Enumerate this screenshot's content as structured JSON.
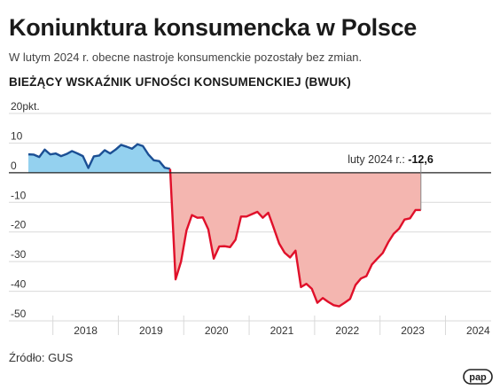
{
  "title": "Koniunktura konsumencka w Polsce",
  "subtitle": "W lutym 2024 r. obecne nastroje konsumenckie pozostały bez zmian.",
  "section_title": "BIEŻĄCY WSKAŹNIK UFNOŚCI KONSUMENCKIEJ (BWUK)",
  "source": "Źródło: GUS",
  "logo_text": "pap",
  "colors": {
    "positive_line": "#1b4f94",
    "positive_fill": "#94d1ef",
    "negative_line": "#e0102a",
    "negative_fill": "#f4b6b0",
    "grid": "#d9d9d9",
    "zero_line": "#222222"
  },
  "chart_data": {
    "type": "area",
    "ylabel": "pkt.",
    "ylim": [
      -50,
      20
    ],
    "yticks": [
      20,
      10,
      0,
      -10,
      -20,
      -30,
      -40,
      -50
    ],
    "x_labels": [
      "2018",
      "2019",
      "2020",
      "2021",
      "2022",
      "2023",
      "2024"
    ],
    "grid": true,
    "start": "2017-08",
    "frequency": "monthly",
    "values": [
      6.2,
      6.1,
      5.3,
      7.8,
      6.2,
      6.5,
      5.6,
      6.3,
      7.3,
      6.5,
      5.6,
      1.6,
      5.5,
      5.8,
      7.6,
      6.5,
      7.8,
      9.4,
      8.8,
      8.1,
      9.6,
      9.0,
      6.2,
      4.2,
      3.9,
      1.7,
      1.3,
      -36.0,
      -30.0,
      -19.5,
      -14.3,
      -15.2,
      -15.1,
      -19.1,
      -29.0,
      -24.9,
      -24.8,
      -25.1,
      -22.6,
      -14.8,
      -14.8,
      -14.0,
      -13.2,
      -15.2,
      -13.5,
      -18.6,
      -23.9,
      -27.0,
      -28.6,
      -26.3,
      -38.6,
      -37.5,
      -39.2,
      -43.9,
      -42.3,
      -43.6,
      -44.7,
      -45.1,
      -43.9,
      -42.6,
      -37.9,
      -35.7,
      -34.9,
      -31.0,
      -29.0,
      -27.1,
      -23.5,
      -20.6,
      -18.9,
      -15.8,
      -15.4,
      -12.6,
      -12.6
    ],
    "annotation": {
      "label": "luty 2024 r.:",
      "value": "-12,6"
    }
  }
}
